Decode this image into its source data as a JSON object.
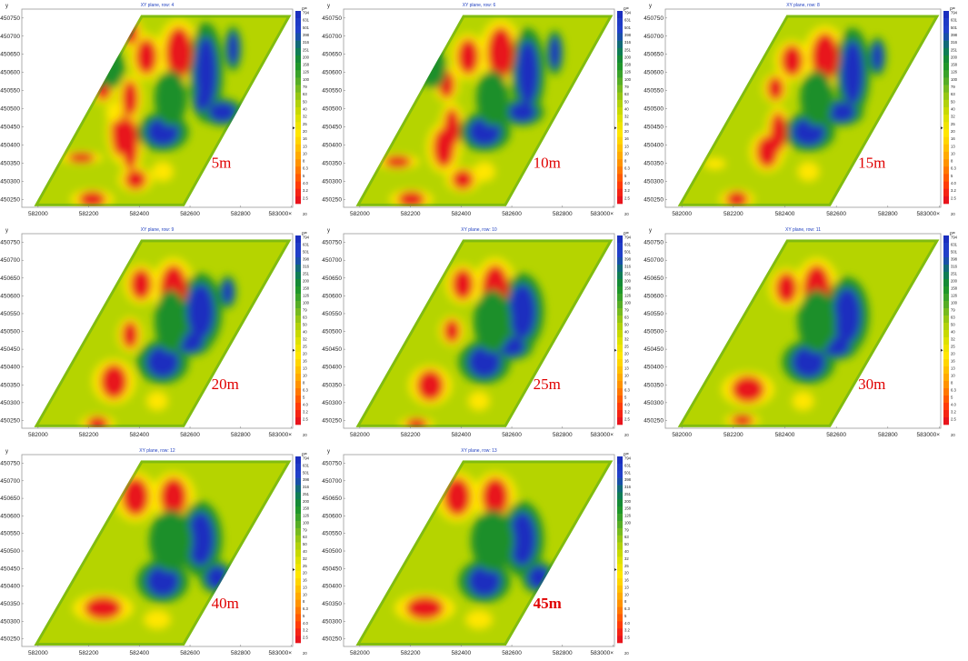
{
  "figure": {
    "colors": {
      "low": "#e8141c",
      "mid_low": "#ffe600",
      "mid": "#b5d400",
      "mid_high": "#1f8f2a",
      "high": "#1b2fbf"
    }
  },
  "chart_data": [
    {
      "type": "heatmap",
      "title": "XY plane, row: 4",
      "depth_label": "5m",
      "ylabel": "y",
      "xticks": [
        "582000",
        "582200",
        "582400",
        "582600",
        "582800",
        "583000"
      ],
      "yticks": [
        "450750",
        "450700",
        "450650",
        "450600",
        "450550",
        "450500",
        "450450",
        "450400",
        "450350",
        "450300",
        "450250"
      ],
      "colorbar_unit": "ρ=",
      "colorbar_ticks": [
        "794",
        "631",
        "501",
        "398",
        "316",
        "251",
        "200",
        "158",
        "126",
        "100",
        "79",
        "63",
        "50",
        "40",
        "32",
        "25",
        "20",
        "16",
        "13",
        "10",
        "8",
        "6.3",
        "5",
        "4.0",
        "3.2",
        "2.5"
      ],
      "colorbar_min": "20",
      "x_axis_end": "583000×"
    },
    {
      "type": "heatmap",
      "title": "XY plane, row: 6",
      "depth_label": "10m",
      "ylabel": "y",
      "xticks": [
        "582000",
        "582200",
        "582400",
        "582600",
        "582800",
        "583000"
      ],
      "yticks": [
        "450750",
        "450700",
        "450650",
        "450600",
        "450550",
        "450500",
        "450450",
        "450400",
        "450350",
        "450300",
        "450250"
      ],
      "colorbar_unit": "ρ=",
      "colorbar_ticks": [
        "794",
        "631",
        "501",
        "398",
        "316",
        "251",
        "200",
        "158",
        "126",
        "100",
        "79",
        "63",
        "50",
        "40",
        "32",
        "25",
        "20",
        "16",
        "13",
        "10",
        "8",
        "6.3",
        "5",
        "4.0",
        "3.2",
        "2.5"
      ],
      "colorbar_min": "20",
      "x_axis_end": "583000×"
    },
    {
      "type": "heatmap",
      "title": "XY plane, row: 8",
      "depth_label": "15m",
      "ylabel": "y",
      "xticks": [
        "582000",
        "582200",
        "582400",
        "582600",
        "582800",
        "583000"
      ],
      "yticks": [
        "450750",
        "450700",
        "450650",
        "450600",
        "450550",
        "450500",
        "450450",
        "450400",
        "450350",
        "450300",
        "450250"
      ],
      "colorbar_unit": "ρ=",
      "colorbar_ticks": [
        "794",
        "631",
        "501",
        "398",
        "316",
        "251",
        "200",
        "158",
        "126",
        "100",
        "79",
        "63",
        "50",
        "40",
        "32",
        "25",
        "20",
        "16",
        "13",
        "10",
        "8",
        "6.3",
        "5",
        "4.0",
        "3.2",
        "2.5"
      ],
      "colorbar_min": "20",
      "x_axis_end": "583000×"
    },
    {
      "type": "heatmap",
      "title": "XY plane, row: 9",
      "depth_label": "20m",
      "ylabel": "y",
      "xticks": [
        "582000",
        "582200",
        "582400",
        "582600",
        "582800",
        "583000"
      ],
      "yticks": [
        "450750",
        "450700",
        "450650",
        "450600",
        "450550",
        "450500",
        "450450",
        "450400",
        "450350",
        "450300",
        "450250"
      ],
      "colorbar_unit": "ρ=",
      "colorbar_ticks": [
        "794",
        "631",
        "501",
        "398",
        "316",
        "251",
        "200",
        "158",
        "126",
        "100",
        "79",
        "63",
        "50",
        "40",
        "32",
        "25",
        "20",
        "16",
        "13",
        "10",
        "8",
        "6.3",
        "5",
        "4.0",
        "3.2",
        "2.5"
      ],
      "colorbar_min": "20",
      "x_axis_end": "583000×"
    },
    {
      "type": "heatmap",
      "title": "XY plane, row: 10",
      "depth_label": "25m",
      "ylabel": "y",
      "xticks": [
        "582000",
        "582200",
        "582400",
        "582600",
        "582800",
        "583000"
      ],
      "yticks": [
        "450750",
        "450700",
        "450650",
        "450600",
        "450550",
        "450500",
        "450450",
        "450400",
        "450350",
        "450300",
        "450250"
      ],
      "colorbar_unit": "ρ=",
      "colorbar_ticks": [
        "794",
        "631",
        "501",
        "398",
        "316",
        "251",
        "200",
        "158",
        "126",
        "100",
        "79",
        "63",
        "50",
        "40",
        "32",
        "25",
        "20",
        "16",
        "13",
        "10",
        "8",
        "6.3",
        "5",
        "4.0",
        "3.2",
        "2.5"
      ],
      "colorbar_min": "20",
      "x_axis_end": "583000×"
    },
    {
      "type": "heatmap",
      "title": "XY plane, row: 11",
      "depth_label": "30m",
      "ylabel": "y",
      "xticks": [
        "582000",
        "582200",
        "582400",
        "582600",
        "582800",
        "583000"
      ],
      "yticks": [
        "450750",
        "450700",
        "450650",
        "450600",
        "450550",
        "450500",
        "450450",
        "450400",
        "450350",
        "450300",
        "450250"
      ],
      "colorbar_unit": "ρ=",
      "colorbar_ticks": [
        "794",
        "631",
        "501",
        "398",
        "316",
        "251",
        "200",
        "158",
        "126",
        "100",
        "79",
        "63",
        "50",
        "40",
        "32",
        "25",
        "20",
        "16",
        "13",
        "10",
        "8",
        "6.3",
        "5",
        "4.0",
        "3.2",
        "2.5"
      ],
      "colorbar_min": "20",
      "x_axis_end": "583000×"
    },
    {
      "type": "heatmap",
      "title": "XY plane, row: 12",
      "depth_label": "40m",
      "ylabel": "y",
      "xticks": [
        "582000",
        "582200",
        "582400",
        "582600",
        "582800",
        "583000"
      ],
      "yticks": [
        "450750",
        "450700",
        "450650",
        "450600",
        "450550",
        "450500",
        "450450",
        "450400",
        "450350",
        "450300",
        "450250"
      ],
      "colorbar_unit": "ρ=",
      "colorbar_ticks": [
        "794",
        "631",
        "501",
        "398",
        "316",
        "251",
        "200",
        "158",
        "126",
        "100",
        "79",
        "63",
        "50",
        "40",
        "32",
        "25",
        "20",
        "16",
        "13",
        "10",
        "8",
        "6.3",
        "5",
        "4.0",
        "3.2",
        "2.5"
      ],
      "colorbar_min": "20",
      "x_axis_end": "583000×"
    },
    {
      "type": "heatmap",
      "title": "XY plane, row: 13",
      "depth_label": "45m",
      "ylabel": "y",
      "xticks": [
        "582000",
        "582200",
        "582400",
        "582600",
        "582800",
        "583000"
      ],
      "yticks": [
        "450750",
        "450700",
        "450650",
        "450600",
        "450550",
        "450500",
        "450450",
        "450400",
        "450350",
        "450300",
        "450250"
      ],
      "colorbar_unit": "ρ=",
      "colorbar_ticks": [
        "794",
        "631",
        "501",
        "398",
        "316",
        "251",
        "200",
        "158",
        "126",
        "100",
        "79",
        "63",
        "50",
        "40",
        "32",
        "25",
        "20",
        "16",
        "13",
        "10",
        "8",
        "6.3",
        "5",
        "4.0",
        "3.2",
        "2.5"
      ],
      "colorbar_min": "20",
      "x_axis_end": "583000×"
    }
  ]
}
